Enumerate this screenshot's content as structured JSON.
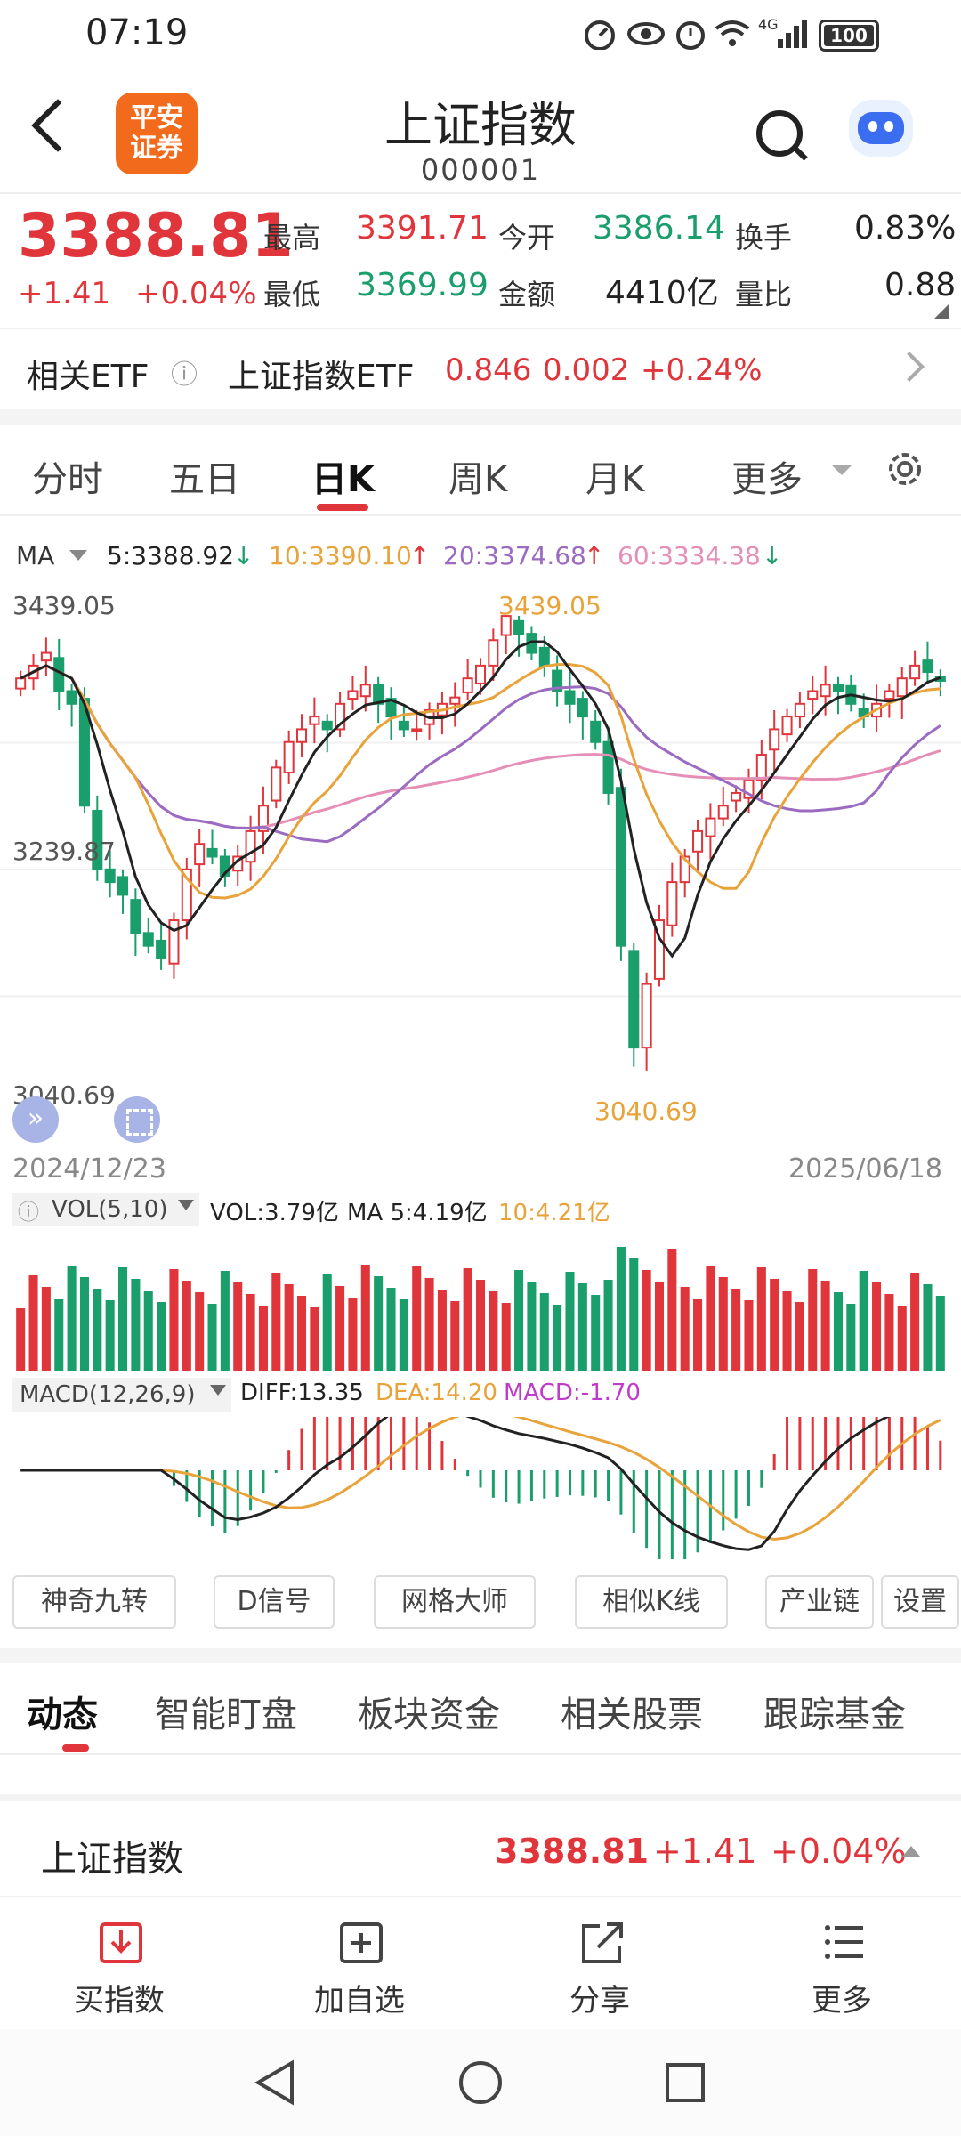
{
  "status_bar": {
    "time": "07:19",
    "battery": "100",
    "network": "4G"
  },
  "header": {
    "title": "上证指数",
    "code": "000001",
    "logo_text": [
      "平安",
      "证券"
    ],
    "brand_color": "#f26b1d"
  },
  "quote": {
    "price": "3388.81",
    "change": "+1.41",
    "change_pct": "+0.04%",
    "fields": [
      {
        "label": "最高",
        "value": "3391.71",
        "color": "red"
      },
      {
        "label": "今开",
        "value": "3386.14",
        "color": "green"
      },
      {
        "label": "换手",
        "value": "0.83%",
        "color": "black"
      },
      {
        "label": "最低",
        "value": "3369.99",
        "color": "green"
      },
      {
        "label": "金额",
        "value": "4410亿",
        "color": "black"
      },
      {
        "label": "量比",
        "value": "0.88",
        "color": "black"
      }
    ]
  },
  "etf": {
    "label": "相关ETF",
    "info_icon": "ⓘ",
    "name": "上证指数ETF",
    "price": "0.846",
    "change": "0.002",
    "pct": "+0.24%"
  },
  "chart_tabs": {
    "items": [
      "分时",
      "五日",
      "日K",
      "周K",
      "月K",
      "更多"
    ],
    "active": "日K"
  },
  "ma": {
    "label": "MA",
    "ma5": "5:3388.92",
    "ma10": "10:3390.10",
    "ma20": "20:3374.68",
    "ma60": "60:3334.38"
  },
  "chart_data": {
    "type": "candlestick",
    "title": "",
    "ylim": [
      3040.69,
      3439.05
    ],
    "y_ticks": [
      "3439.05",
      "3239.87",
      "3040.69"
    ],
    "annotations": {
      "high": "3439.05",
      "low": "3040.69"
    },
    "x_range": [
      "2024/12/23",
      "2025/06/18"
    ],
    "close_trend": [
      3390,
      3400,
      3410,
      3380,
      3370,
      3290,
      3240,
      3230,
      3220,
      3190,
      3180,
      3170,
      3200,
      3240,
      3260,
      3250,
      3235,
      3250,
      3270,
      3290,
      3320,
      3340,
      3350,
      3360,
      3350,
      3370,
      3380,
      3385,
      3370,
      3360,
      3350,
      3350,
      3365,
      3370,
      3375,
      3390,
      3400,
      3420,
      3439,
      3425,
      3410,
      3400,
      3380,
      3370,
      3360,
      3340,
      3300,
      3180,
      3100,
      3150,
      3200,
      3230,
      3250,
      3270,
      3280,
      3290,
      3300,
      3310,
      3330,
      3350,
      3360,
      3370,
      3380,
      3385,
      3380,
      3370,
      3360,
      3370,
      3380,
      3390,
      3400,
      3395,
      3388
    ],
    "vol_label": "VOL(5,10)",
    "vol": "VOL:3.79亿",
    "vol_ma5": "MA 5:4.19亿",
    "vol_ma10": "10:4.21亿",
    "macd_label": "MACD(12,26,9)",
    "diff": "DIFF:13.35",
    "dea": "DEA:14.20",
    "macd": "MACD:-1.70",
    "colors": {
      "up": "#e0353b",
      "down": "#1a9e6c",
      "ma5": "#222222",
      "ma10": "#e8a33a",
      "ma20": "#9b6bc2",
      "ma60": "#e58fb7"
    }
  },
  "tools": [
    "神奇九转",
    "D信号",
    "网格大师",
    "相似K线",
    "产业链",
    "设置"
  ],
  "info_tabs": {
    "items": [
      "动态",
      "智能盯盘",
      "板块资金",
      "相关股票",
      "跟踪基金"
    ],
    "active": "动态"
  },
  "bottom_quote": {
    "name": "上证指数",
    "price": "3388.81",
    "change": "+1.41",
    "pct": "+0.04%"
  },
  "actions": [
    {
      "label": "买指数",
      "icon": "buy-icon"
    },
    {
      "label": "加自选",
      "icon": "add-icon"
    },
    {
      "label": "分享",
      "icon": "share-icon"
    },
    {
      "label": "更多",
      "icon": "more-icon"
    }
  ]
}
